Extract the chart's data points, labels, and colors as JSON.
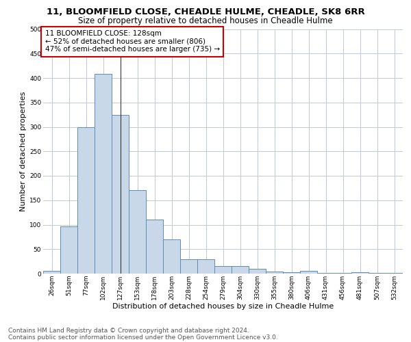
{
  "title_line1": "11, BLOOMFIELD CLOSE, CHEADLE HULME, CHEADLE, SK8 6RR",
  "title_line2": "Size of property relative to detached houses in Cheadle Hulme",
  "xlabel": "Distribution of detached houses by size in Cheadle Hulme",
  "ylabel": "Number of detached properties",
  "categories": [
    "26sqm",
    "51sqm",
    "77sqm",
    "102sqm",
    "127sqm",
    "153sqm",
    "178sqm",
    "203sqm",
    "228sqm",
    "254sqm",
    "279sqm",
    "304sqm",
    "330sqm",
    "355sqm",
    "380sqm",
    "406sqm",
    "431sqm",
    "456sqm",
    "481sqm",
    "507sqm",
    "532sqm"
  ],
  "values": [
    5,
    97,
    300,
    408,
    325,
    170,
    110,
    70,
    30,
    30,
    16,
    15,
    10,
    4,
    3,
    5,
    1,
    1,
    3,
    1,
    1
  ],
  "bar_color": "#c8d8e8",
  "bar_edge_color": "#5b8db8",
  "highlight_bar_index": 4,
  "highlight_line_color": "#333333",
  "annotation_text": "11 BLOOMFIELD CLOSE: 128sqm\n← 52% of detached houses are smaller (806)\n47% of semi-detached houses are larger (735) →",
  "annotation_box_color": "#ffffff",
  "annotation_box_edge_color": "#cc0000",
  "ylim": [
    0,
    500
  ],
  "yticks": [
    0,
    50,
    100,
    150,
    200,
    250,
    300,
    350,
    400,
    450,
    500
  ],
  "footer_line1": "Contains HM Land Registry data © Crown copyright and database right 2024.",
  "footer_line2": "Contains public sector information licensed under the Open Government Licence v3.0.",
  "background_color": "#ffffff",
  "grid_color": "#c0c8d8",
  "title_fontsize": 9.5,
  "subtitle_fontsize": 8.5,
  "axis_label_fontsize": 8,
  "tick_fontsize": 6.5,
  "annotation_fontsize": 7.5,
  "footer_fontsize": 6.5
}
